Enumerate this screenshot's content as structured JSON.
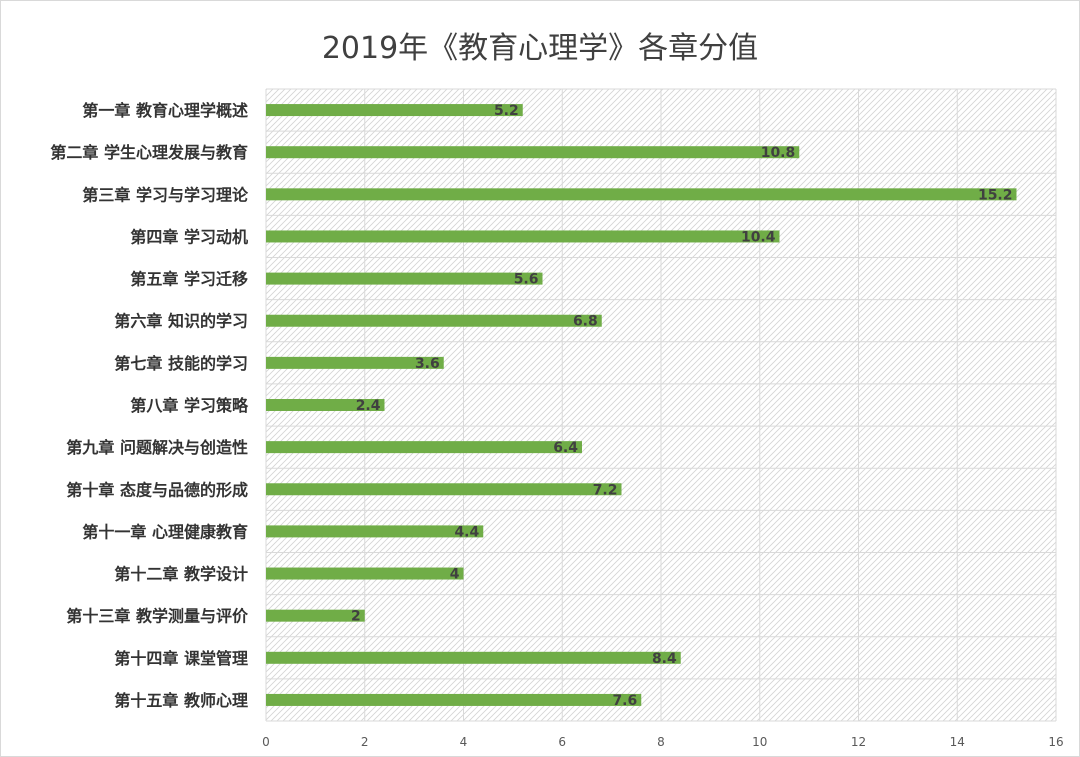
{
  "chart_data": {
    "type": "bar",
    "orientation": "horizontal",
    "title": "2019年《教育心理学》各章分值",
    "xlabel": "",
    "ylabel": "",
    "xlim": [
      0,
      16
    ],
    "ticks": [
      0,
      2,
      4,
      6,
      8,
      10,
      12,
      14,
      16
    ],
    "grid": true,
    "legend": "none",
    "bar_color": "#70ad47",
    "categories": [
      "第一章 教育心理学概述",
      "第二章 学生心理发展与教育",
      "第三章 学习与学习理论",
      "第四章 学习动机",
      "第五章 学习迁移",
      "第六章 知识的学习",
      "第七章 技能的学习",
      "第八章 学习策略",
      "第九章 问题解决与创造性",
      "第十章 态度与品德的形成",
      "第十一章 心理健康教育",
      "第十二章 教学设计",
      "第十三章 教学测量与评价",
      "第十四章 课堂管理",
      "第十五章 教师心理"
    ],
    "values": [
      5.2,
      10.8,
      15.2,
      10.4,
      5.6,
      6.8,
      3.6,
      2.4,
      6.4,
      7.2,
      4.4,
      4,
      2,
      8.4,
      7.6
    ]
  }
}
